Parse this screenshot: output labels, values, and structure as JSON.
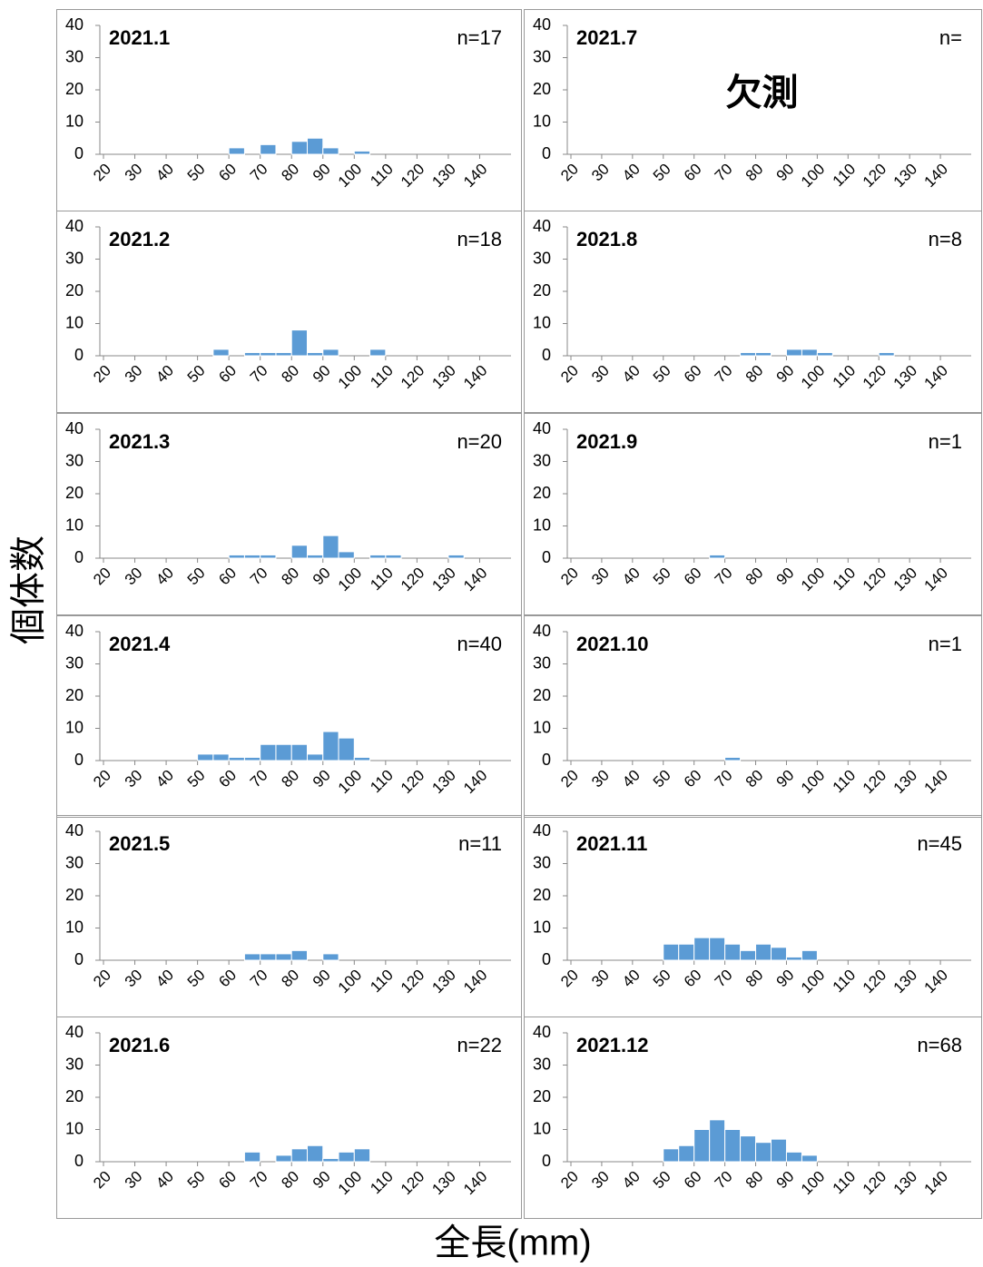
{
  "axis_labels": {
    "y": "個体数",
    "x": "全長(mm)"
  },
  "chart_data": [
    {
      "type": "histogram",
      "title": "2021.1",
      "annotation": "n=17",
      "color": "#5b9bd5",
      "bins": [
        20,
        25,
        30,
        35,
        40,
        45,
        50,
        55,
        60,
        65,
        70,
        75,
        80,
        85,
        90,
        95,
        100,
        105,
        110,
        115,
        120,
        125,
        130,
        135,
        140,
        145,
        150
      ],
      "values": [
        0,
        0,
        0,
        0,
        0,
        0,
        0,
        0,
        2,
        0,
        3,
        0,
        4,
        5,
        2,
        0,
        1,
        0,
        0,
        0,
        0,
        0,
        0,
        0,
        0,
        0
      ],
      "xlim": [
        20,
        150
      ],
      "xticks": [
        20,
        30,
        40,
        50,
        60,
        70,
        80,
        90,
        100,
        110,
        120,
        130,
        140
      ],
      "ylim": [
        0,
        40
      ],
      "yticks": [
        0,
        10,
        20,
        30,
        40
      ]
    },
    {
      "type": "histogram",
      "title": "2021.2",
      "annotation": "n=18",
      "color": "#5b9bd5",
      "bins": [
        20,
        25,
        30,
        35,
        40,
        45,
        50,
        55,
        60,
        65,
        70,
        75,
        80,
        85,
        90,
        95,
        100,
        105,
        110,
        115,
        120,
        125,
        130,
        135,
        140,
        145,
        150
      ],
      "values": [
        0,
        0,
        0,
        0,
        0,
        0,
        0,
        2,
        0,
        1,
        1,
        1,
        8,
        1,
        2,
        0,
        0,
        2,
        0,
        0,
        0,
        0,
        0,
        0,
        0,
        0
      ],
      "xlim": [
        20,
        150
      ],
      "xticks": [
        20,
        30,
        40,
        50,
        60,
        70,
        80,
        90,
        100,
        110,
        120,
        130,
        140
      ],
      "ylim": [
        0,
        40
      ],
      "yticks": [
        0,
        10,
        20,
        30,
        40
      ]
    },
    {
      "type": "histogram",
      "title": "2021.3",
      "annotation": "n=20",
      "color": "#5b9bd5",
      "bins": [
        20,
        25,
        30,
        35,
        40,
        45,
        50,
        55,
        60,
        65,
        70,
        75,
        80,
        85,
        90,
        95,
        100,
        105,
        110,
        115,
        120,
        125,
        130,
        135,
        140,
        145,
        150
      ],
      "values": [
        0,
        0,
        0,
        0,
        0,
        0,
        0,
        0,
        1,
        1,
        1,
        0,
        4,
        1,
        7,
        2,
        0,
        1,
        1,
        0,
        0,
        0,
        1,
        0,
        0,
        0
      ],
      "xlim": [
        20,
        150
      ],
      "xticks": [
        20,
        30,
        40,
        50,
        60,
        70,
        80,
        90,
        100,
        110,
        120,
        130,
        140
      ],
      "ylim": [
        0,
        40
      ],
      "yticks": [
        0,
        10,
        20,
        30,
        40
      ]
    },
    {
      "type": "histogram",
      "title": "2021.4",
      "annotation": "n=40",
      "color": "#5b9bd5",
      "bins": [
        20,
        25,
        30,
        35,
        40,
        45,
        50,
        55,
        60,
        65,
        70,
        75,
        80,
        85,
        90,
        95,
        100,
        105,
        110,
        115,
        120,
        125,
        130,
        135,
        140,
        145,
        150
      ],
      "values": [
        0,
        0,
        0,
        0,
        0,
        0,
        2,
        2,
        1,
        1,
        5,
        5,
        5,
        2,
        9,
        7,
        1,
        0,
        0,
        0,
        0,
        0,
        0,
        0,
        0,
        0
      ],
      "xlim": [
        20,
        150
      ],
      "xticks": [
        20,
        30,
        40,
        50,
        60,
        70,
        80,
        90,
        100,
        110,
        120,
        130,
        140
      ],
      "ylim": [
        0,
        40
      ],
      "yticks": [
        0,
        10,
        20,
        30,
        40
      ]
    },
    {
      "type": "histogram",
      "title": "2021.5",
      "annotation": "n=11",
      "color": "#5b9bd5",
      "bins": [
        20,
        25,
        30,
        35,
        40,
        45,
        50,
        55,
        60,
        65,
        70,
        75,
        80,
        85,
        90,
        95,
        100,
        105,
        110,
        115,
        120,
        125,
        130,
        135,
        140,
        145,
        150
      ],
      "values": [
        0,
        0,
        0,
        0,
        0,
        0,
        0,
        0,
        0,
        2,
        2,
        2,
        3,
        0,
        2,
        0,
        0,
        0,
        0,
        0,
        0,
        0,
        0,
        0,
        0,
        0
      ],
      "xlim": [
        20,
        150
      ],
      "xticks": [
        20,
        30,
        40,
        50,
        60,
        70,
        80,
        90,
        100,
        110,
        120,
        130,
        140
      ],
      "ylim": [
        0,
        40
      ],
      "yticks": [
        0,
        10,
        20,
        30,
        40
      ]
    },
    {
      "type": "histogram",
      "title": "2021.6",
      "annotation": "n=22",
      "color": "#5b9bd5",
      "bins": [
        20,
        25,
        30,
        35,
        40,
        45,
        50,
        55,
        60,
        65,
        70,
        75,
        80,
        85,
        90,
        95,
        100,
        105,
        110,
        115,
        120,
        125,
        130,
        135,
        140,
        145,
        150
      ],
      "values": [
        0,
        0,
        0,
        0,
        0,
        0,
        0,
        0,
        0,
        3,
        0,
        2,
        4,
        5,
        1,
        3,
        4,
        0,
        0,
        0,
        0,
        0,
        0,
        0,
        0,
        0
      ],
      "xlim": [
        20,
        150
      ],
      "xticks": [
        20,
        30,
        40,
        50,
        60,
        70,
        80,
        90,
        100,
        110,
        120,
        130,
        140
      ],
      "ylim": [
        0,
        40
      ],
      "yticks": [
        0,
        10,
        20,
        30,
        40
      ]
    },
    {
      "type": "histogram",
      "title": "2021.7",
      "annotation": "n=",
      "note": "欠測",
      "color": "#5b9bd5",
      "bins": [
        20,
        25,
        30,
        35,
        40,
        45,
        50,
        55,
        60,
        65,
        70,
        75,
        80,
        85,
        90,
        95,
        100,
        105,
        110,
        115,
        120,
        125,
        130,
        135,
        140,
        145,
        150
      ],
      "values": [
        null,
        null,
        null,
        null,
        null,
        null,
        null,
        null,
        null,
        null,
        null,
        null,
        null,
        null,
        null,
        null,
        null,
        null,
        null,
        null,
        null,
        null,
        null,
        null,
        null,
        null
      ],
      "xlim": [
        20,
        150
      ],
      "xticks": [
        20,
        30,
        40,
        50,
        60,
        70,
        80,
        90,
        100,
        110,
        120,
        130,
        140
      ],
      "ylim": [
        0,
        40
      ],
      "yticks": [
        0,
        10,
        20,
        30,
        40
      ]
    },
    {
      "type": "histogram",
      "title": "2021.8",
      "annotation": "n=8",
      "color": "#5b9bd5",
      "bins": [
        20,
        25,
        30,
        35,
        40,
        45,
        50,
        55,
        60,
        65,
        70,
        75,
        80,
        85,
        90,
        95,
        100,
        105,
        110,
        115,
        120,
        125,
        130,
        135,
        140,
        145,
        150
      ],
      "values": [
        0,
        0,
        0,
        0,
        0,
        0,
        0,
        0,
        0,
        0,
        0,
        1,
        1,
        0,
        2,
        2,
        1,
        0,
        0,
        0,
        1,
        0,
        0,
        0,
        0,
        0
      ],
      "xlim": [
        20,
        150
      ],
      "xticks": [
        20,
        30,
        40,
        50,
        60,
        70,
        80,
        90,
        100,
        110,
        120,
        130,
        140
      ],
      "ylim": [
        0,
        40
      ],
      "yticks": [
        0,
        10,
        20,
        30,
        40
      ]
    },
    {
      "type": "histogram",
      "title": "2021.9",
      "annotation": "n=1",
      "color": "#5b9bd5",
      "bins": [
        20,
        25,
        30,
        35,
        40,
        45,
        50,
        55,
        60,
        65,
        70,
        75,
        80,
        85,
        90,
        95,
        100,
        105,
        110,
        115,
        120,
        125,
        130,
        135,
        140,
        145,
        150
      ],
      "values": [
        0,
        0,
        0,
        0,
        0,
        0,
        0,
        0,
        0,
        1,
        0,
        0,
        0,
        0,
        0,
        0,
        0,
        0,
        0,
        0,
        0,
        0,
        0,
        0,
        0,
        0
      ],
      "xlim": [
        20,
        150
      ],
      "xticks": [
        20,
        30,
        40,
        50,
        60,
        70,
        80,
        90,
        100,
        110,
        120,
        130,
        140
      ],
      "ylim": [
        0,
        40
      ],
      "yticks": [
        0,
        10,
        20,
        30,
        40
      ]
    },
    {
      "type": "histogram",
      "title": "2021.10",
      "annotation": "n=1",
      "color": "#5b9bd5",
      "bins": [
        20,
        25,
        30,
        35,
        40,
        45,
        50,
        55,
        60,
        65,
        70,
        75,
        80,
        85,
        90,
        95,
        100,
        105,
        110,
        115,
        120,
        125,
        130,
        135,
        140,
        145,
        150
      ],
      "values": [
        0,
        0,
        0,
        0,
        0,
        0,
        0,
        0,
        0,
        0,
        1,
        0,
        0,
        0,
        0,
        0,
        0,
        0,
        0,
        0,
        0,
        0,
        0,
        0,
        0,
        0
      ],
      "xlim": [
        20,
        150
      ],
      "xticks": [
        20,
        30,
        40,
        50,
        60,
        70,
        80,
        90,
        100,
        110,
        120,
        130,
        140
      ],
      "ylim": [
        0,
        40
      ],
      "yticks": [
        0,
        10,
        20,
        30,
        40
      ]
    },
    {
      "type": "histogram",
      "title": "2021.11",
      "annotation": "n=45",
      "color": "#5b9bd5",
      "bins": [
        20,
        25,
        30,
        35,
        40,
        45,
        50,
        55,
        60,
        65,
        70,
        75,
        80,
        85,
        90,
        95,
        100,
        105,
        110,
        115,
        120,
        125,
        130,
        135,
        140,
        145,
        150
      ],
      "values": [
        0,
        0,
        0,
        0,
        0,
        0,
        5,
        5,
        7,
        7,
        5,
        3,
        5,
        4,
        1,
        3,
        0,
        0,
        0,
        0,
        0,
        0,
        0,
        0,
        0,
        0
      ],
      "xlim": [
        20,
        150
      ],
      "xticks": [
        20,
        30,
        40,
        50,
        60,
        70,
        80,
        90,
        100,
        110,
        120,
        130,
        140
      ],
      "ylim": [
        0,
        40
      ],
      "yticks": [
        0,
        10,
        20,
        30,
        40
      ]
    },
    {
      "type": "histogram",
      "title": "2021.12",
      "annotation": "n=68",
      "color": "#5b9bd5",
      "bins": [
        20,
        25,
        30,
        35,
        40,
        45,
        50,
        55,
        60,
        65,
        70,
        75,
        80,
        85,
        90,
        95,
        100,
        105,
        110,
        115,
        120,
        125,
        130,
        135,
        140,
        145,
        150
      ],
      "values": [
        0,
        0,
        0,
        0,
        0,
        0,
        4,
        5,
        10,
        13,
        10,
        8,
        6,
        7,
        3,
        2,
        0,
        0,
        0,
        0,
        0,
        0,
        0,
        0,
        0,
        0
      ],
      "xlim": [
        20,
        150
      ],
      "xticks": [
        20,
        30,
        40,
        50,
        60,
        70,
        80,
        90,
        100,
        110,
        120,
        130,
        140
      ],
      "ylim": [
        0,
        40
      ],
      "yticks": [
        0,
        10,
        20,
        30,
        40
      ]
    }
  ]
}
